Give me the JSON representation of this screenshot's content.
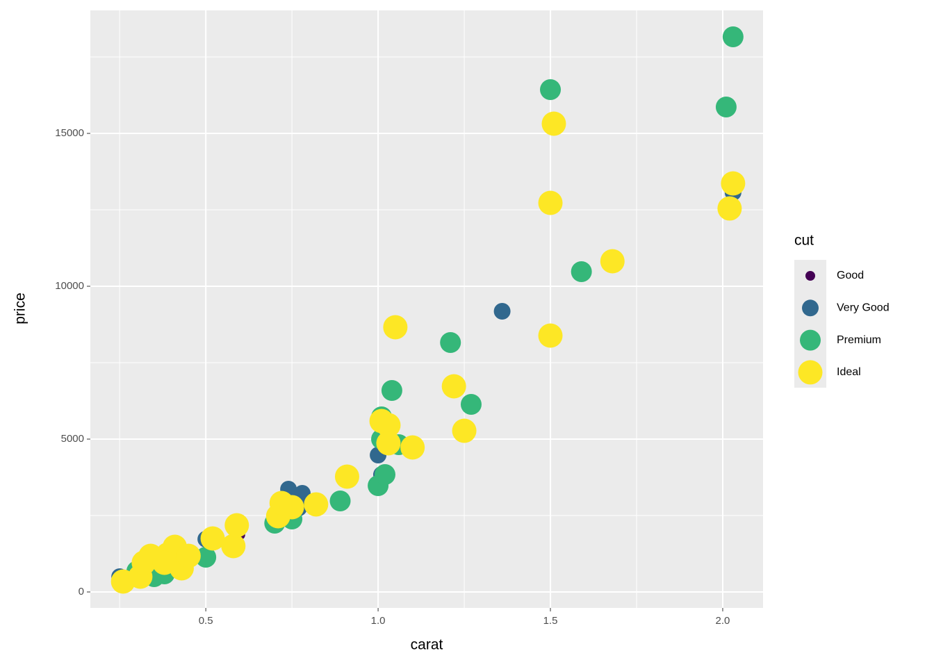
{
  "chart_data": {
    "type": "scatter",
    "x_label": "carat",
    "y_label": "price",
    "legend_title": "cut",
    "xlim": [
      0.165,
      2.117
    ],
    "ylim": [
      -523,
      19023
    ],
    "xticks": [
      0.5,
      {
        "value": 1.0,
        "label": "1.0"
      },
      1.5,
      {
        "value": 2.0,
        "label": "2.0"
      }
    ],
    "yticks": [
      0,
      5000,
      10000,
      15000
    ],
    "grid": true,
    "series": [
      {
        "name": "Good",
        "color": "#440154",
        "x": [
          0.6,
          1.0
        ],
        "y": [
          1864,
          3841
        ]
      },
      {
        "name": "Very Good",
        "color": "#31688e",
        "x": [
          0.25,
          0.5,
          0.74,
          0.78,
          0.77,
          1.0,
          1.02,
          1.36,
          2.03,
          1.01
        ],
        "y": [
          500,
          1727,
          3364,
          3227,
          2750,
          4477,
          4977,
          9182,
          13068,
          3841
        ]
      },
      {
        "name": "Premium",
        "color": "#35b779",
        "x": [
          0.35,
          0.38,
          0.3,
          0.5,
          0.7,
          0.75,
          0.89,
          1.0,
          1.02,
          1.01,
          1.01,
          1.06,
          1.04,
          1.21,
          1.27,
          1.59,
          1.5,
          2.01,
          2.03
        ],
        "y": [
          500,
          591,
          682,
          1136,
          2250,
          2386,
          2977,
          3477,
          3841,
          5727,
          5000,
          4818,
          6591,
          8159,
          6136,
          10477,
          16432,
          15864,
          18159
        ]
      },
      {
        "name": "Ideal",
        "color": "#fde725",
        "x": [
          0.26,
          0.31,
          0.34,
          0.32,
          0.39,
          0.41,
          0.43,
          0.38,
          0.45,
          0.52,
          0.58,
          0.59,
          0.71,
          0.72,
          0.75,
          0.82,
          0.91,
          1.01,
          1.03,
          1.03,
          1.1,
          1.05,
          1.22,
          1.25,
          1.5,
          1.51,
          1.5,
          1.68,
          2.03,
          2.02
        ],
        "y": [
          341,
          500,
          1182,
          955,
          1227,
          1477,
          773,
          955,
          1182,
          1750,
          1500,
          2182,
          2477,
          2909,
          2773,
          2864,
          3773,
          5591,
          5455,
          4864,
          4727,
          8659,
          6727,
          5273,
          12727,
          15318,
          8386,
          10818,
          13364,
          12545
        ]
      }
    ]
  }
}
